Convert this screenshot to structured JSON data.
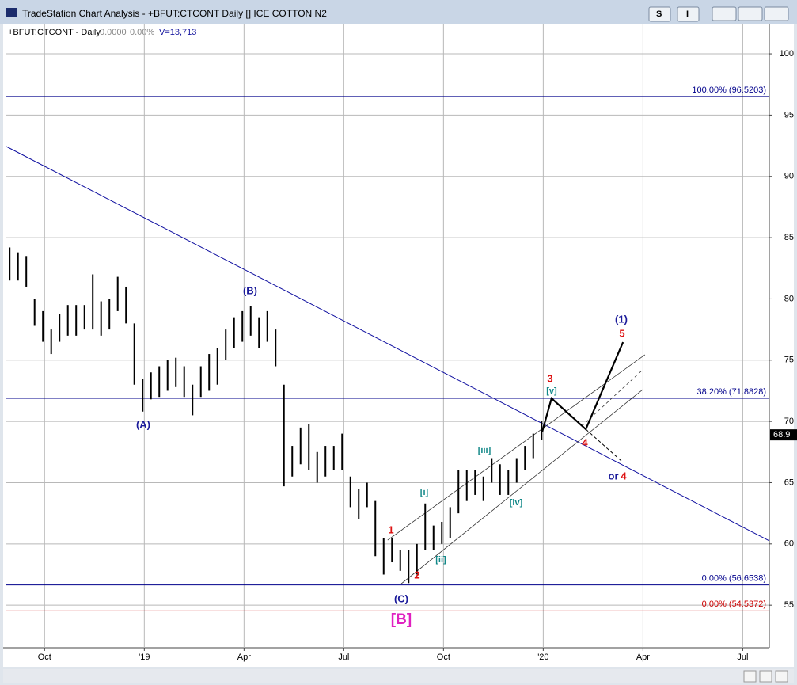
{
  "window": {
    "title": "TradeStation Chart Analysis - +BFUT:CTCONT Daily [] ICE COTTON N2",
    "buttons": [
      "S",
      "I"
    ]
  },
  "chart_data": {
    "type": "ohlc",
    "symbol": "+BFUT:CTCONT - Daily",
    "change": "0.0000",
    "change_pct": "0.00%",
    "volume": "V=13,713",
    "color": "#000000",
    "x": [
      -1.05,
      -0.8,
      -0.55,
      -0.3,
      -0.05,
      0.2,
      0.45,
      0.7,
      0.95,
      1.2,
      1.45,
      1.7,
      1.95,
      2.2,
      2.45,
      2.7,
      2.95,
      3.2,
      3.45,
      3.7,
      3.95,
      4.2,
      4.45,
      4.7,
      4.95,
      5.2,
      5.45,
      5.7,
      5.95,
      6.2,
      6.45,
      6.7,
      6.95,
      7.2,
      7.45,
      7.7,
      7.95,
      8.2,
      8.45,
      8.7,
      8.95,
      9.2,
      9.45,
      9.7,
      9.95,
      10.2,
      10.45,
      10.7,
      10.95,
      11.2,
      11.45,
      11.7,
      11.95,
      12.2,
      12.45,
      12.7,
      12.95,
      13.2,
      13.45,
      13.7,
      13.95,
      14.2,
      14.45,
      14.7,
      14.95
    ],
    "high": [
      84.2,
      83.8,
      83.5,
      80,
      79,
      77.5,
      78.8,
      79.5,
      79.5,
      79.5,
      82,
      79.8,
      80,
      81.8,
      81,
      78,
      73.5,
      74,
      74.5,
      75,
      75.2,
      74.5,
      73,
      74.5,
      75.5,
      76,
      77.5,
      78.5,
      79,
      79.4,
      78.5,
      79,
      77.5,
      73,
      68,
      69.5,
      69.8,
      67.5,
      68,
      68,
      69,
      65.5,
      64.5,
      65,
      63.5,
      60.5,
      60.5,
      59.5,
      59.5,
      60,
      63.3,
      61.5,
      61.8,
      63,
      66,
      66,
      66,
      65.5,
      67,
      66.5,
      66,
      67,
      68,
      69,
      70
    ],
    "low": [
      81.5,
      81.5,
      81,
      77.8,
      76.5,
      75.5,
      76.5,
      77,
      77,
      77.5,
      77.5,
      77,
      77.5,
      79,
      78,
      73,
      70.8,
      71.8,
      72,
      72.5,
      72.8,
      72,
      70.5,
      72,
      72.5,
      73,
      75,
      76,
      76.5,
      77,
      76,
      76.5,
      74.5,
      64.7,
      65.5,
      66.5,
      66,
      65,
      65.5,
      66,
      66,
      63,
      62,
      63,
      59,
      57.5,
      58.5,
      57.8,
      56.8,
      57.5,
      59.5,
      59.5,
      60,
      60.5,
      62.5,
      63.5,
      64,
      63.5,
      65,
      64,
      64,
      65,
      66,
      67,
      68.5
    ],
    "xlim": [
      -1.15,
      21.8
    ],
    "xticks": [
      {
        "value": 0,
        "label": "Oct"
      },
      {
        "value": 3,
        "label": "'19"
      },
      {
        "value": 6,
        "label": "Apr"
      },
      {
        "value": 9,
        "label": "Jul"
      },
      {
        "value": 12,
        "label": "Oct"
      },
      {
        "value": 15,
        "label": "'20"
      },
      {
        "value": 18,
        "label": "Apr"
      },
      {
        "value": 21,
        "label": "Jul"
      }
    ],
    "ylim": [
      51.52,
      102.46
    ],
    "yticks": [
      55,
      60,
      65,
      70,
      75,
      80,
      85,
      90,
      95,
      100
    ],
    "grid": true,
    "last_price": 68.9,
    "levels": [
      {
        "value": 96.5203,
        "label": "100.00% (96.5203)",
        "color": "#00008b"
      },
      {
        "value": 71.8828,
        "label": "38.20% (71.8828)",
        "color": "#00008b"
      },
      {
        "value": 56.6538,
        "label": "0.00% (56.6538)",
        "color": "#00008b"
      },
      {
        "value": 54.5372,
        "label": "0.00% (54.5372)",
        "color": "#cc0000"
      }
    ],
    "lines": [
      {
        "color": "#1010a0",
        "width": 1,
        "dashed": false,
        "x": [
          -1.15,
          21.8
        ],
        "y": [
          92.44,
          60.25
        ]
      },
      {
        "color": "#333333",
        "width": 0.8,
        "dashed": false,
        "x": [
          10.32,
          18.06
        ],
        "y": [
          60.31,
          75.44
        ]
      },
      {
        "color": "#333333",
        "width": 0.8,
        "dashed": false,
        "x": [
          10.73,
          17.99
        ],
        "y": [
          56.75,
          72.59
        ]
      },
      {
        "color": "#333333",
        "width": 0.8,
        "dashed": true,
        "x": [
          16.16,
          17.99
        ],
        "y": [
          69.62,
          74.21
        ]
      },
      {
        "color": "#000000",
        "width": 2.2,
        "dashed": false,
        "x": [
          14.97,
          15.25,
          16.28,
          17.4
        ],
        "y": [
          69.17,
          71.88,
          69.36,
          76.47
        ]
      },
      {
        "color": "#000000",
        "width": 1,
        "dashed": true,
        "x": [
          16.28,
          17.35
        ],
        "y": [
          69.36,
          66.77
        ]
      }
    ],
    "annotations": [
      {
        "text": "(B)",
        "color": "#1a1a9a"
      },
      {
        "text": "(A)",
        "color": "#1a1a9a"
      },
      {
        "text": "(C)",
        "color": "#1a1a9a"
      },
      {
        "text": "[B]",
        "color": "#e020c0"
      },
      {
        "text": "1",
        "color": "#dd1111"
      },
      {
        "text": "2",
        "color": "#dd1111"
      },
      {
        "text": "3",
        "color": "#dd1111"
      },
      {
        "text": "4",
        "color": "#dd1111"
      },
      {
        "text": "5",
        "color": "#dd1111"
      },
      {
        "text": "(1)",
        "color": "#1a1a9a"
      },
      {
        "text": "[i]",
        "color": "#118888"
      },
      {
        "text": "[ii]",
        "color": "#118888"
      },
      {
        "text": "[iii]",
        "color": "#118888"
      },
      {
        "text": "[iv]",
        "color": "#118888"
      },
      {
        "text": "[v]",
        "color": "#118888"
      },
      {
        "text": "or",
        "color": "#1a1a9a"
      },
      {
        "text": "4",
        "color": "#dd1111"
      }
    ]
  }
}
